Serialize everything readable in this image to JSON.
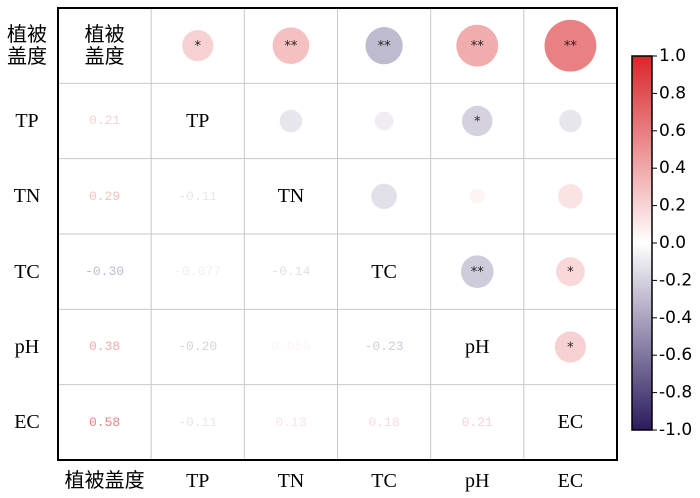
{
  "chart_data": {
    "type": "corrplot",
    "variables": [
      "植被盖度",
      "TP",
      "TN",
      "TC",
      "pH",
      "EC"
    ],
    "values": [
      [
        0.21
      ],
      [
        0.29,
        -0.11
      ],
      [
        -0.3,
        -0.077,
        -0.14
      ],
      [
        0.38,
        -0.2,
        0.05,
        -0.23
      ],
      [
        0.58,
        -0.11,
        0.13,
        0.18,
        0.21
      ]
    ],
    "value_labels": [
      [
        "0.21"
      ],
      [
        "0.29",
        "-0.11"
      ],
      [
        "-0.30",
        "-0.077",
        "-0.14"
      ],
      [
        "0.38",
        "-0.20",
        "0.050",
        "-0.23"
      ],
      [
        "0.58",
        "-0.11",
        "0.13",
        "0.18",
        "0.21"
      ]
    ],
    "stars": [
      [
        "*"
      ],
      [
        "**",
        null
      ],
      [
        "**",
        null,
        null
      ],
      [
        "**",
        "*",
        null,
        "**"
      ],
      [
        "**",
        null,
        null,
        "*",
        "*"
      ]
    ],
    "colormap": {
      "low": "#2b1b5e",
      "mid": "#ffffff",
      "high": "#d9262a"
    },
    "colorbar": {
      "lim": [
        -1,
        1
      ],
      "ticks": [
        {
          "value": 1,
          "label": "1.0"
        },
        {
          "value": 0.8,
          "label": "0.8"
        },
        {
          "value": 0.6,
          "label": "0.6"
        },
        {
          "value": 0.4,
          "label": "0.4"
        },
        {
          "value": 0.2,
          "label": "0.2"
        },
        {
          "value": 0,
          "label": "0.0"
        },
        {
          "value": -0.2,
          "label": "-0.2"
        },
        {
          "value": -0.4,
          "label": "-0.4"
        },
        {
          "value": -0.6,
          "label": "-0.6"
        },
        {
          "value": -0.8,
          "label": "-0.8"
        },
        {
          "value": -1,
          "label": "-1.0"
        }
      ]
    }
  }
}
